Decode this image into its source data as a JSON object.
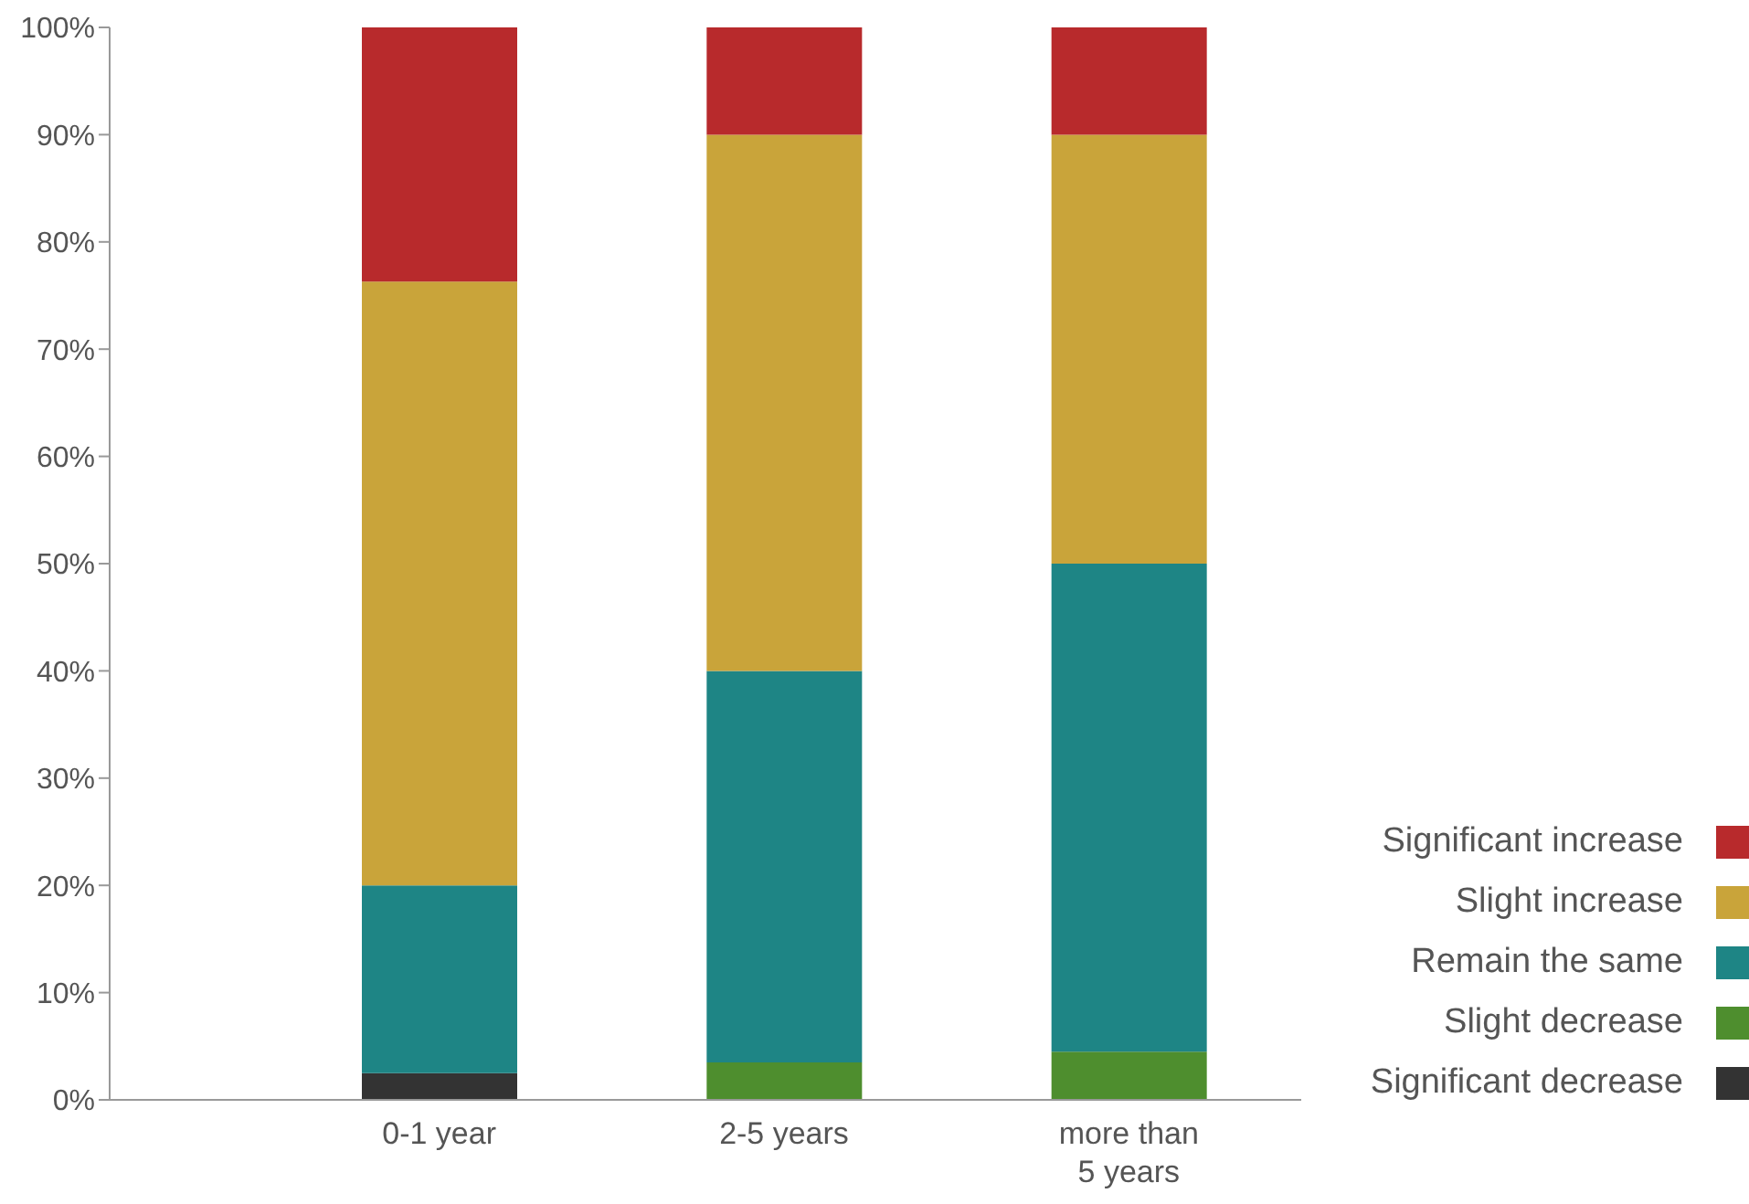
{
  "chart_data": {
    "type": "bar",
    "stacked": true,
    "categories": [
      "0-1 year",
      "2-5 years",
      "more than 5 years"
    ],
    "series": [
      {
        "name": "Significant decrease",
        "color": "#333333",
        "values": [
          2.5,
          0,
          0
        ]
      },
      {
        "name": "Slight decrease",
        "color": "#4e8e2e",
        "values": [
          0,
          3.5,
          4.5
        ]
      },
      {
        "name": "Remain the same",
        "color": "#1e8585",
        "values": [
          17.5,
          36.5,
          45.5
        ]
      },
      {
        "name": "Slight increase",
        "color": "#c9a43a",
        "values": [
          56.3,
          50,
          40
        ]
      },
      {
        "name": "Significant increase",
        "color": "#b82a2c",
        "values": [
          23.7,
          10,
          10
        ]
      }
    ],
    "ylim": [
      0,
      100
    ],
    "yticks": [
      {
        "value": 0,
        "label": "0%"
      },
      {
        "value": 10,
        "label": "10%"
      },
      {
        "value": 20,
        "label": "20%"
      },
      {
        "value": 30,
        "label": "30%"
      },
      {
        "value": 40,
        "label": "40%"
      },
      {
        "value": 50,
        "label": "50%"
      },
      {
        "value": 60,
        "label": "60%"
      },
      {
        "value": 70,
        "label": "70%"
      },
      {
        "value": 80,
        "label": "80%"
      },
      {
        "value": 90,
        "label": "90%"
      },
      {
        "value": 100,
        "label": "100%"
      }
    ],
    "grid": false,
    "legend": "bottom right"
  }
}
